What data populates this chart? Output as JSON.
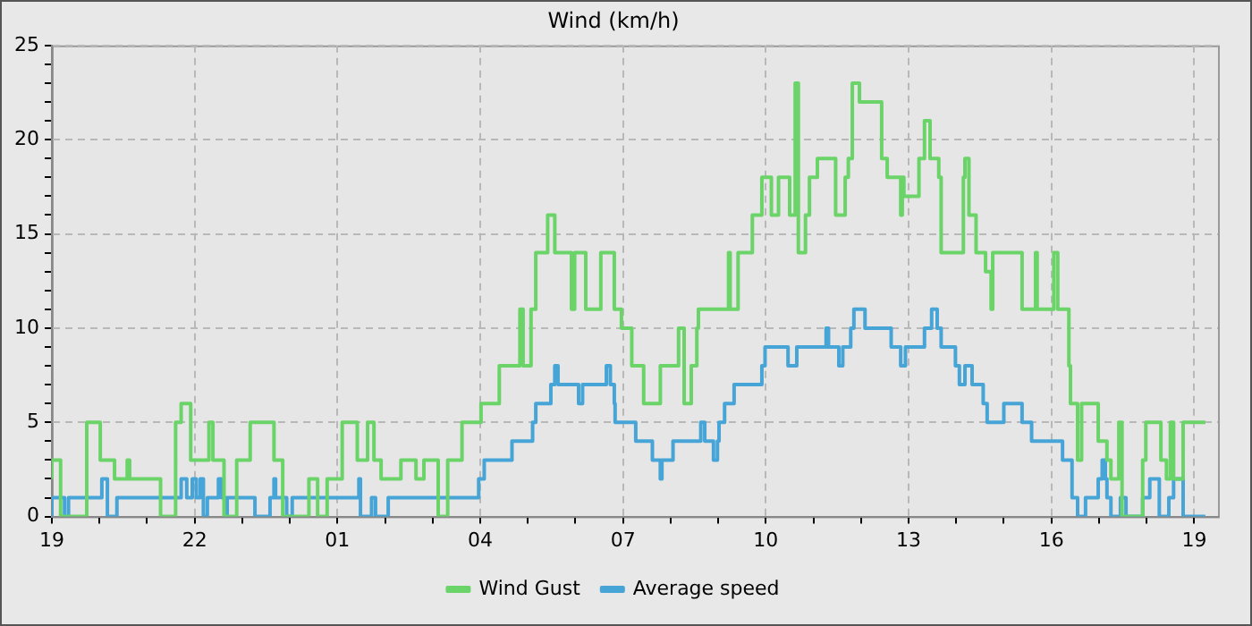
{
  "chart_data": {
    "type": "step",
    "title": "Wind (km/h)",
    "legend": "bottom",
    "grid": true,
    "xlim": [
      "--01-01T19:00",
      "--01-02T19:30"
    ],
    "xticks": [
      {
        "value": "--01-01T19:00",
        "label": "19"
      },
      {
        "value": "--01-01T20:00",
        "label": null
      },
      {
        "value": "--01-01T21:00",
        "label": null
      },
      {
        "value": "--01-01T22:00",
        "label": "22"
      },
      {
        "value": "--01-01T23:00",
        "label": null
      },
      {
        "value": "--01-02T00:00",
        "label": null
      },
      {
        "value": "--01-02T01:00",
        "label": "01"
      },
      {
        "value": "--01-02T02:00",
        "label": null
      },
      {
        "value": "--01-02T03:00",
        "label": null
      },
      {
        "value": "--01-02T04:00",
        "label": "04"
      },
      {
        "value": "--01-02T05:00",
        "label": null
      },
      {
        "value": "--01-02T06:00",
        "label": null
      },
      {
        "value": "--01-02T07:00",
        "label": "07"
      },
      {
        "value": "--01-02T08:00",
        "label": null
      },
      {
        "value": "--01-02T09:00",
        "label": null
      },
      {
        "value": "--01-02T10:00",
        "label": "10"
      },
      {
        "value": "--01-02T11:00",
        "label": null
      },
      {
        "value": "--01-02T12:00",
        "label": null
      },
      {
        "value": "--01-02T13:00",
        "label": "13"
      },
      {
        "value": "--01-02T14:00",
        "label": null
      },
      {
        "value": "--01-02T15:00",
        "label": null
      },
      {
        "value": "--01-02T16:00",
        "label": "16"
      },
      {
        "value": "--01-02T17:00",
        "label": null
      },
      {
        "value": "--01-02T18:00",
        "label": null
      },
      {
        "value": "--01-02T19:00",
        "label": "19"
      }
    ],
    "ylim": [
      0,
      25
    ],
    "yticks": [
      0,
      {
        "value": 1,
        "label": null
      },
      {
        "value": 2,
        "label": null
      },
      {
        "value": 3,
        "label": null
      },
      {
        "value": 4,
        "label": null
      },
      5,
      {
        "value": 6,
        "label": null
      },
      {
        "value": 7,
        "label": null
      },
      {
        "value": 8,
        "label": null
      },
      {
        "value": 9,
        "label": null
      },
      10,
      {
        "value": 11,
        "label": null
      },
      {
        "value": 12,
        "label": null
      },
      {
        "value": 13,
        "label": null
      },
      {
        "value": 14,
        "label": null
      },
      15,
      {
        "value": 16,
        "label": null
      },
      {
        "value": 17,
        "label": null
      },
      {
        "value": 18,
        "label": null
      },
      {
        "value": 19,
        "label": null
      },
      20,
      {
        "value": 21,
        "label": null
      },
      {
        "value": 22,
        "label": null
      },
      {
        "value": 23,
        "label": null
      },
      {
        "value": 24,
        "label": null
      },
      25
    ],
    "series": [
      {
        "name": "Wind Gust",
        "color": "#6ad468",
        "x": [
          "--01-01T19:00",
          "--01-01T19:11",
          "--01-01T19:44",
          "--01-01T20:01",
          "--01-01T20:19",
          "--01-01T20:35",
          "--01-01T20:38",
          "--01-01T21:17",
          "--01-01T21:36",
          "--01-01T21:43",
          "--01-01T21:55",
          "--01-01T22:18",
          "--01-01T22:23",
          "--01-01T22:37",
          "--01-01T22:53",
          "--01-01T23:10",
          "--01-01T23:40",
          "--01-01T23:51",
          "--01-02T00:24",
          "--01-02T00:35",
          "--01-02T00:47",
          "--01-02T01:06",
          "--01-02T01:25",
          "--01-02T01:38",
          "--01-02T01:46",
          "--01-02T01:55",
          "--01-02T02:20",
          "--01-02T02:39",
          "--01-02T02:49",
          "--01-02T03:07",
          "--01-02T03:19",
          "--01-02T03:37",
          "--01-02T04:01",
          "--01-02T04:24",
          "--01-02T04:50",
          "--01-02T04:54",
          "--01-02T05:04",
          "--01-02T05:10",
          "--01-02T05:25",
          "--01-02T05:34",
          "--01-02T05:55",
          "--01-02T05:59",
          "--01-02T06:13",
          "--01-02T06:32",
          "--01-02T06:49",
          "--01-02T06:58",
          "--01-02T07:11",
          "--01-02T07:26",
          "--01-02T07:47",
          "--01-02T08:10",
          "--01-02T08:17",
          "--01-02T08:26",
          "--01-02T08:33",
          "--01-02T08:35",
          "--01-02T09:13",
          "--01-02T09:15",
          "--01-02T09:25",
          "--01-02T09:43",
          "--01-02T09:55",
          "--01-02T10:07",
          "--01-02T10:16",
          "--01-02T10:30",
          "--01-02T10:37",
          "--01-02T10:41",
          "--01-02T10:50",
          "--01-02T10:55",
          "--01-02T11:05",
          "--01-02T11:28",
          "--01-02T11:40",
          "--01-02T11:44",
          "--01-02T11:49",
          "--01-02T11:58",
          "--01-02T12:26",
          "--01-02T12:33",
          "--01-02T12:50",
          "--01-02T12:52",
          "--01-02T12:54",
          "--01-02T13:13",
          "--01-02T13:20",
          "--01-02T13:27",
          "--01-02T13:38",
          "--01-02T13:41",
          "--01-02T14:09",
          "--01-02T14:11",
          "--01-02T14:16",
          "--01-02T14:25",
          "--01-02T14:37",
          "--01-02T14:44",
          "--01-02T14:46",
          "--01-02T15:23",
          "--01-02T15:40",
          "--01-02T15:42",
          "--01-02T16:03",
          "--01-02T16:08",
          "--01-02T16:22",
          "--01-02T16:24",
          "--01-02T16:33",
          "--01-02T16:38",
          "--01-02T16:59",
          "--01-02T17:10",
          "--01-02T17:15",
          "--01-02T17:25",
          "--01-02T17:29",
          "--01-02T17:55",
          "--01-02T17:59",
          "--01-02T18:18",
          "--01-02T18:25",
          "--01-02T18:30",
          "--01-02T18:34",
          "--01-02T18:46",
          "--01-02T19:05",
          "--01-02T19:14"
        ],
        "values": [
          2,
          3,
          0,
          5,
          3,
          2,
          3,
          2,
          0,
          5,
          6,
          3,
          5,
          3,
          0,
          3,
          5,
          3,
          0,
          2,
          0,
          2,
          5,
          3,
          5,
          3,
          2,
          3,
          2,
          3,
          0,
          3,
          5,
          6,
          8,
          11,
          8,
          11,
          14,
          16,
          14,
          11,
          14,
          11,
          14,
          11,
          10,
          8,
          6,
          8,
          10,
          6,
          8,
          10,
          11,
          14,
          11,
          14,
          16,
          18,
          16,
          18,
          16,
          23,
          14,
          16,
          18,
          19,
          16,
          18,
          19,
          23,
          22,
          19,
          18,
          16,
          18,
          17,
          19,
          21,
          19,
          18,
          14,
          18,
          19,
          16,
          14,
          13,
          11,
          14,
          11,
          14,
          11,
          14,
          11,
          8,
          6,
          3,
          6,
          4,
          3,
          2,
          5,
          0,
          3,
          5,
          3,
          2,
          5,
          2,
          5,
          5
        ]
      },
      {
        "name": "Average speed",
        "color": "#46a5d6",
        "x": [
          "--01-01T19:00",
          "--01-01T19:16",
          "--01-01T19:21",
          "--01-01T20:03",
          "--01-01T20:10",
          "--01-01T20:22",
          "--01-01T21:43",
          "--01-01T21:50",
          "--01-01T21:57",
          "--01-01T22:02",
          "--01-01T22:07",
          "--01-01T22:11",
          "--01-01T22:16",
          "--01-01T22:30",
          "--01-01T22:34",
          "--01-01T22:39",
          "--01-01T22:41",
          "--01-01T23:16",
          "--01-01T23:35",
          "--01-01T23:40",
          "--01-01T23:42",
          "--01-01T23:56",
          "--01-02T00:03",
          "--01-02T01:27",
          "--01-02T01:29",
          "--01-02T01:43",
          "--01-02T01:48",
          "--01-02T02:04",
          "--01-02T03:58",
          "--01-02T04:05",
          "--01-02T04:40",
          "--01-02T05:06",
          "--01-02T05:10",
          "--01-02T05:29",
          "--01-02T05:34",
          "--01-02T05:38",
          "--01-02T06:04",
          "--01-02T06:09",
          "--01-02T06:39",
          "--01-02T06:44",
          "--01-02T06:49",
          "--01-02T06:50",
          "--01-02T07:16",
          "--01-02T07:37",
          "--01-02T07:47",
          "--01-02T07:49",
          "--01-02T08:03",
          "--01-02T08:38",
          "--01-02T08:43",
          "--01-02T08:54",
          "--01-02T08:59",
          "--01-02T09:01",
          "--01-02T09:08",
          "--01-02T09:20",
          "--01-02T09:55",
          "--01-02T09:59",
          "--01-02T10:28",
          "--01-02T10:39",
          "--01-02T11:16",
          "--01-02T11:19",
          "--01-02T11:32",
          "--01-02T11:37",
          "--01-02T11:47",
          "--01-02T11:51",
          "--01-02T12:05",
          "--01-02T12:38",
          "--01-02T12:50",
          "--01-02T12:56",
          "--01-02T13:20",
          "--01-02T13:29",
          "--01-02T13:36",
          "--01-02T13:41",
          "--01-02T13:59",
          "--01-02T14:04",
          "--01-02T14:11",
          "--01-02T14:20",
          "--01-02T14:34",
          "--01-02T14:39",
          "--01-02T15:00",
          "--01-02T15:23",
          "--01-02T15:35",
          "--01-02T16:14",
          "--01-02T16:26",
          "--01-02T16:33",
          "--01-02T16:43",
          "--01-02T16:59",
          "--01-02T17:04",
          "--01-02T17:08",
          "--01-02T17:10",
          "--01-02T17:15",
          "--01-02T17:27",
          "--01-02T17:34",
          "--01-02T17:55",
          "--01-02T18:04",
          "--01-02T18:16",
          "--01-02T18:28",
          "--01-02T18:34",
          "--01-02T18:46",
          "--01-02T18:50",
          "--01-02T19:14"
        ],
        "values": [
          0,
          1,
          0,
          1,
          2,
          0,
          1,
          2,
          1,
          2,
          1,
          2,
          0,
          1,
          2,
          1,
          0,
          1,
          0,
          1,
          2,
          1,
          0,
          1,
          2,
          0,
          1,
          0,
          1,
          2,
          3,
          4,
          5,
          6,
          7,
          8,
          7,
          6,
          7,
          8,
          7,
          6,
          5,
          4,
          3,
          2,
          3,
          4,
          5,
          4,
          3,
          4,
          5,
          6,
          7,
          8,
          9,
          8,
          9,
          10,
          9,
          8,
          9,
          10,
          11,
          10,
          9,
          8,
          9,
          10,
          11,
          10,
          9,
          8,
          7,
          8,
          7,
          6,
          5,
          6,
          5,
          4,
          3,
          1,
          0,
          1,
          2,
          3,
          2,
          1,
          0,
          1,
          0,
          1,
          2,
          0,
          1,
          2,
          0,
          0
        ]
      }
    ]
  }
}
